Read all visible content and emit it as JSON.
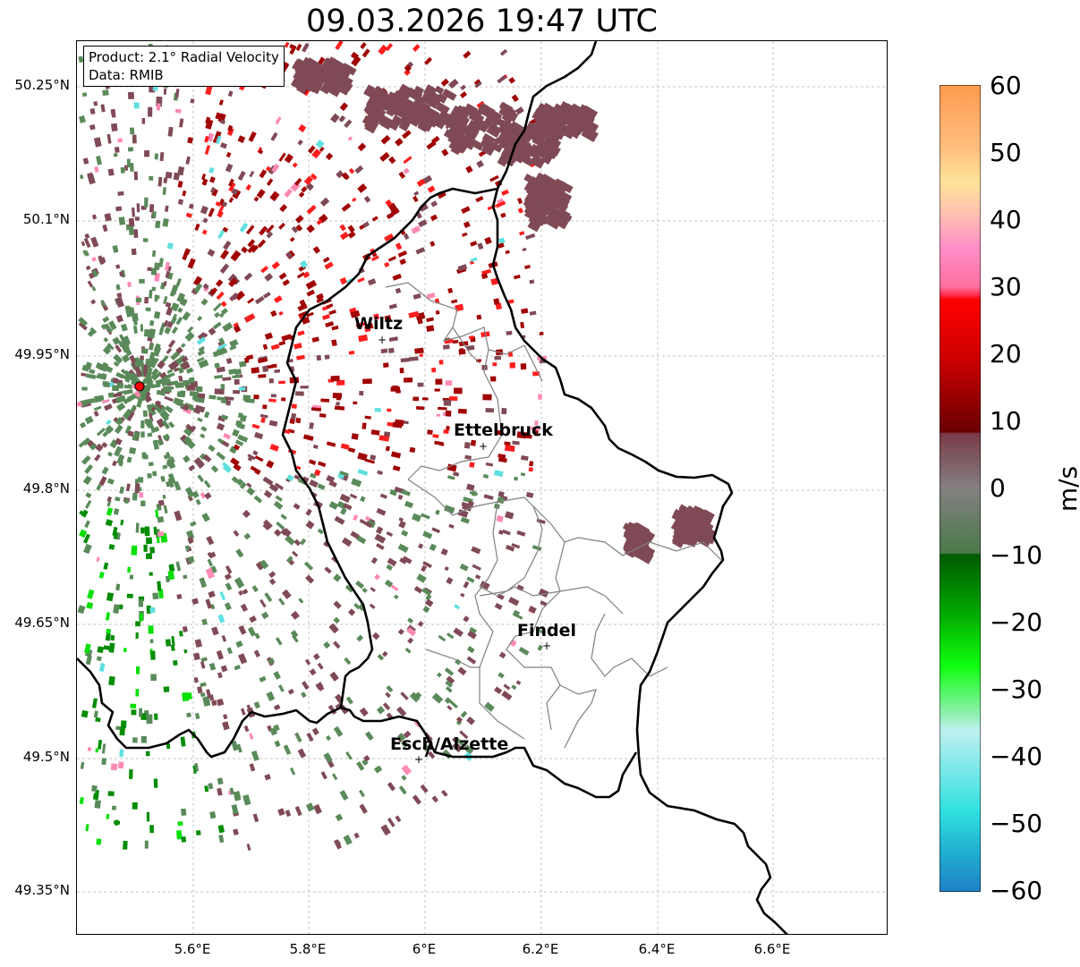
{
  "title": "09.03.2026 19:47 UTC",
  "info_box": {
    "product": "Product: 2.1° Radial Velocity",
    "source": "Data: RMIB"
  },
  "axes": {
    "y_ticks": [
      "50.25°N",
      "50.1°N",
      "49.95°N",
      "49.8°N",
      "49.65°N",
      "49.5°N",
      "49.35°N"
    ],
    "x_ticks": [
      "5.6°E",
      "5.8°E",
      "6°E",
      "6.2°E",
      "6.4°E",
      "6.6°E"
    ]
  },
  "cities": [
    {
      "name": "Wiltz"
    },
    {
      "name": "Ettelbruck"
    },
    {
      "name": "Findel"
    },
    {
      "name": "Esch/Alzette"
    }
  ],
  "colorbar": {
    "unit": "m/s",
    "ticks": [
      "60",
      "50",
      "40",
      "30",
      "20",
      "10",
      "0",
      "−10",
      "−20",
      "−30",
      "−40",
      "−50",
      "−60"
    ],
    "colors": {
      "ge50": "#ffa05a",
      "40_50": "#ffc8a0",
      "30_40": "#ff8ab4",
      "20_30": "#ff1e1e",
      "10_20": "#a00000",
      "0_10": "#7f4a56",
      "m10_0": "#5a8a5a",
      "m20_m10": "#008c00",
      "m30_m20": "#00e000",
      "m40_m30": "#a0f0c0",
      "m50_m40": "#60e0e0",
      "lt_m50": "#1f80c0"
    }
  },
  "radar_marker_color": "#ff0000"
}
